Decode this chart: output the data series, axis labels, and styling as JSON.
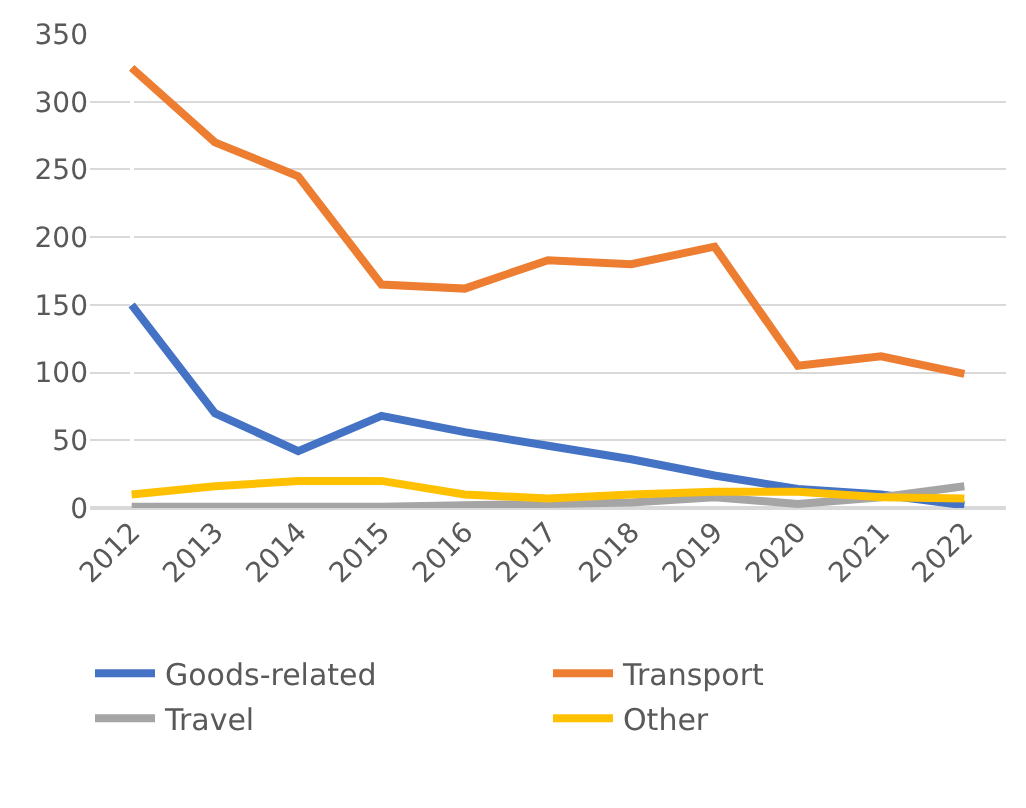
{
  "chart_data": {
    "type": "line",
    "categories": [
      "2012",
      "2013",
      "2014",
      "2015",
      "2016",
      "2017",
      "2018",
      "2019",
      "2020",
      "2021",
      "2022"
    ],
    "series": [
      {
        "name": "Goods-related",
        "color": "#4472c4",
        "values": [
          150,
          70,
          42,
          68,
          56,
          46,
          36,
          24,
          14,
          10,
          2
        ]
      },
      {
        "name": "Transport",
        "color": "#ed7d31",
        "values": [
          325,
          270,
          245,
          165,
          162,
          183,
          180,
          193,
          105,
          112,
          99
        ]
      },
      {
        "name": "Travel",
        "color": "#a5a5a5",
        "values": [
          1,
          1,
          1,
          1,
          2,
          3,
          4,
          8,
          3,
          8,
          16
        ]
      },
      {
        "name": "Other",
        "color": "#ffc000",
        "values": [
          10,
          16,
          20,
          20,
          10,
          7,
          10,
          12,
          12,
          8,
          7
        ]
      }
    ],
    "ylim": [
      0,
      350
    ],
    "yticks": [
      0,
      50,
      100,
      150,
      200,
      250,
      300,
      350
    ],
    "grid": "y",
    "legend": "bottom",
    "marker": "none",
    "line_style": "solid"
  }
}
